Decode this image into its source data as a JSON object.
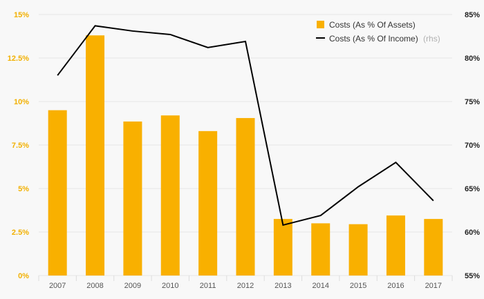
{
  "chart_data": {
    "type": "bar+line",
    "categories": [
      "2007",
      "2008",
      "2009",
      "2010",
      "2011",
      "2012",
      "2013",
      "2014",
      "2015",
      "2016",
      "2017"
    ],
    "series": [
      {
        "name": "Costs (As % Of Assets)",
        "type": "bar",
        "axis": "left",
        "values": [
          9.5,
          13.8,
          8.85,
          9.2,
          8.3,
          9.05,
          3.25,
          3.0,
          2.95,
          3.45,
          3.25
        ]
      },
      {
        "name": "Costs (As % Of Income)",
        "suffix": "(rhs)",
        "type": "line",
        "axis": "right",
        "values": [
          78.0,
          83.7,
          83.1,
          82.7,
          81.2,
          81.9,
          60.8,
          61.9,
          65.2,
          68.0,
          63.6
        ]
      }
    ],
    "left_axis": {
      "ylim": [
        0,
        15
      ],
      "ticks": [
        0,
        2.5,
        5,
        7.5,
        10,
        12.5,
        15
      ],
      "tick_labels": [
        "0%",
        "2.5%",
        "5%",
        "7.5%",
        "10%",
        "12.5%",
        "15%"
      ]
    },
    "right_axis": {
      "ylim": [
        55,
        85
      ],
      "ticks": [
        55,
        60,
        65,
        70,
        75,
        80,
        85
      ],
      "tick_labels": [
        "55%",
        "60%",
        "65%",
        "70%",
        "75%",
        "80%",
        "85%"
      ]
    },
    "grid": true,
    "legend_position": "top-right",
    "colors": {
      "bar": "#f9b000",
      "line": "#000000",
      "grid": "#e6e6e6"
    }
  }
}
